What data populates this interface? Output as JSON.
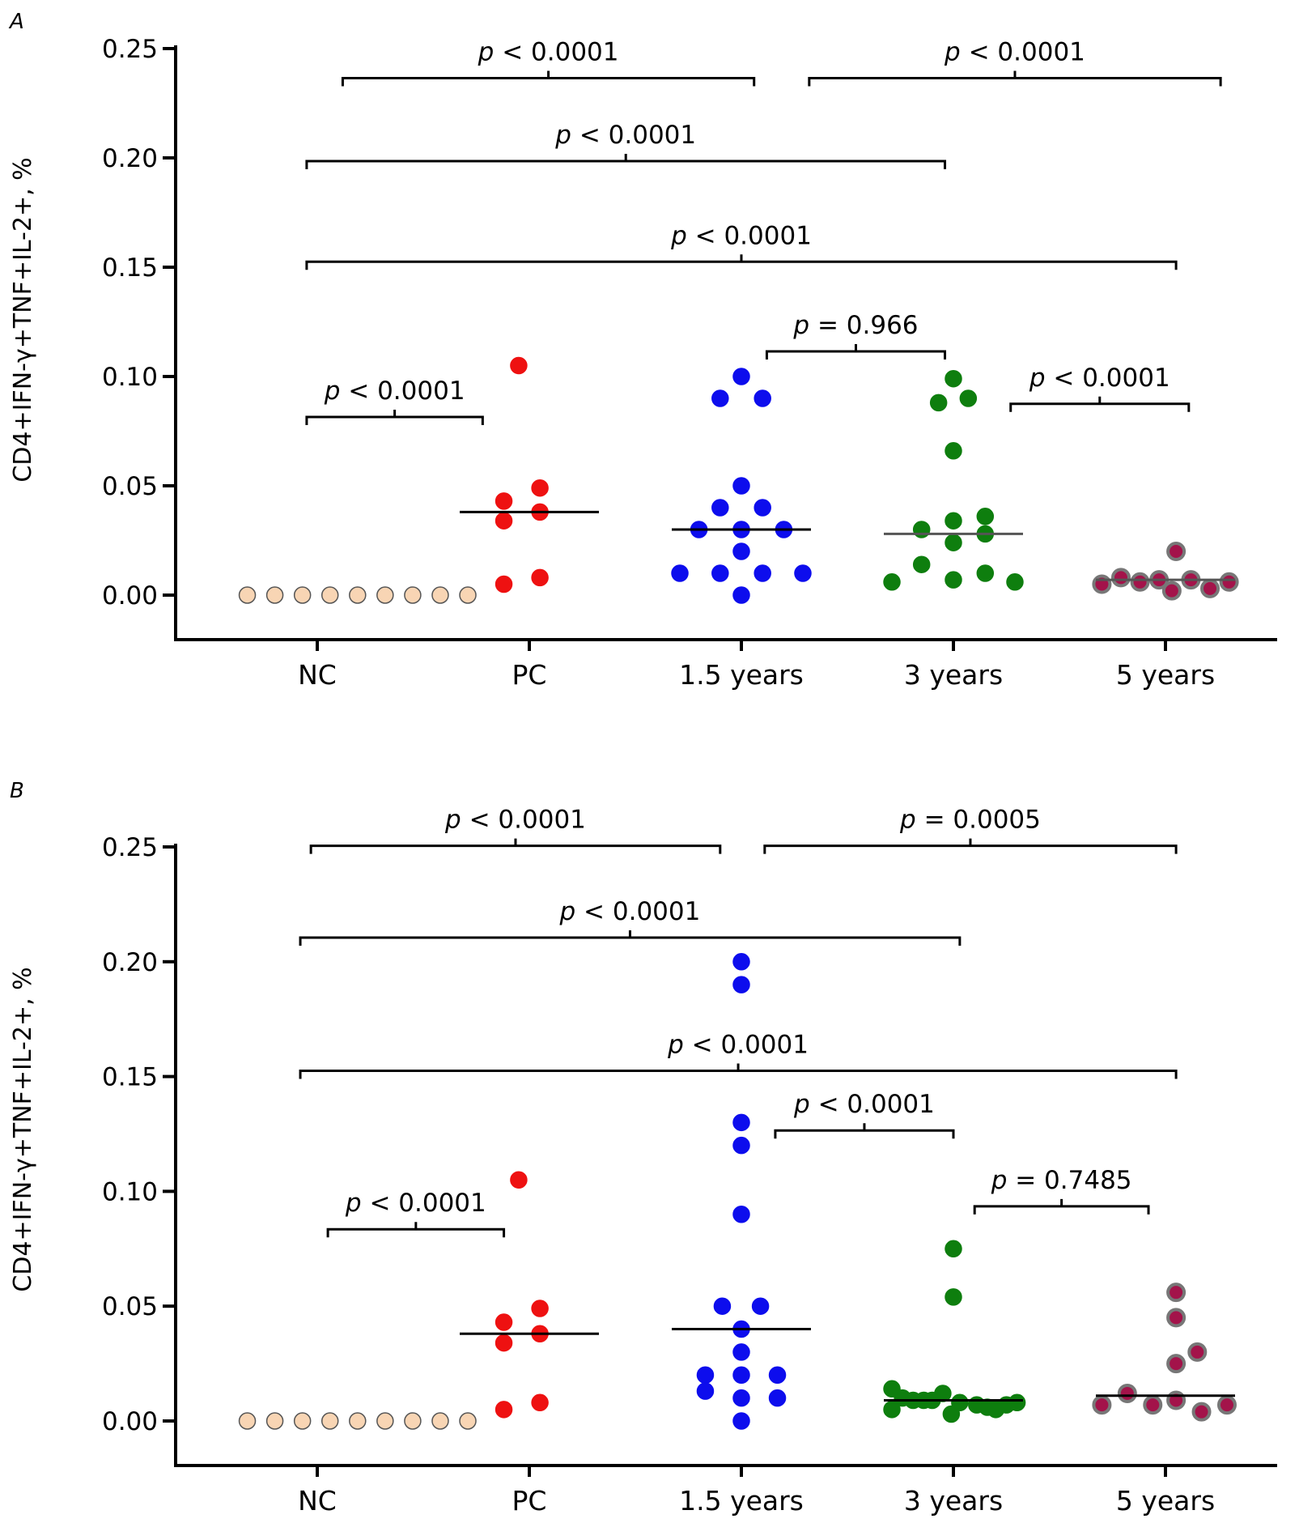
{
  "chart_data": [
    {
      "type": "scatter",
      "panel_label": "A",
      "ylabel": "CD4+IFN-γ+TNF+IL-2+, %",
      "xlabel": "",
      "ylim": [
        0,
        0.25
      ],
      "yticks": [
        "0.00",
        "0.05",
        "0.10",
        "0.15",
        "0.20",
        "0.25"
      ],
      "categories": [
        "NC",
        "PC",
        "1.5 years",
        "3 years",
        "5 years"
      ],
      "series": [
        {
          "category": "NC",
          "color": "#f8d5b4",
          "median": null,
          "points": [
            [
              -0.33,
              0
            ],
            [
              -0.2,
              0
            ],
            [
              -0.07,
              0
            ],
            [
              0.06,
              0
            ],
            [
              0.19,
              0
            ],
            [
              0.32,
              0
            ],
            [
              0.45,
              0
            ],
            [
              0.58,
              0
            ],
            [
              0.71,
              0
            ]
          ]
        },
        {
          "category": "PC",
          "color": "#ee1111",
          "median": 0.038,
          "points": [
            [
              -0.05,
              0.105
            ],
            [
              -0.12,
              0.043
            ],
            [
              0.05,
              0.049
            ],
            [
              -0.12,
              0.034
            ],
            [
              0.05,
              0.038
            ],
            [
              -0.12,
              0.005
            ],
            [
              0.05,
              0.008
            ]
          ]
        },
        {
          "category": "1.5 years",
          "color": "#0d0ded",
          "median": 0.03,
          "points": [
            [
              0,
              0.1
            ],
            [
              -0.1,
              0.09
            ],
            [
              0.1,
              0.09
            ],
            [
              0,
              0.05
            ],
            [
              -0.1,
              0.04
            ],
            [
              0.1,
              0.04
            ],
            [
              -0.2,
              0.03
            ],
            [
              0,
              0.03
            ],
            [
              0.2,
              0.03
            ],
            [
              0,
              0.02
            ],
            [
              -0.29,
              0.01
            ],
            [
              -0.1,
              0.01
            ],
            [
              0.1,
              0.01
            ],
            [
              0.29,
              0.01
            ],
            [
              0,
              0
            ]
          ]
        },
        {
          "category": "3 years",
          "color": "#0e7e0e",
          "median": 0.028,
          "points": [
            [
              0,
              0.099
            ],
            [
              -0.07,
              0.088
            ],
            [
              0.07,
              0.09
            ],
            [
              0,
              0.066
            ],
            [
              -0.15,
              0.03
            ],
            [
              0,
              0.034
            ],
            [
              0.15,
              0.036
            ],
            [
              0,
              0.024
            ],
            [
              0.15,
              0.028
            ],
            [
              -0.15,
              0.014
            ],
            [
              -0.29,
              0.006
            ],
            [
              0,
              0.007
            ],
            [
              0.15,
              0.01
            ],
            [
              0.29,
              0.006
            ]
          ]
        },
        {
          "category": "5 years",
          "color": "#a3134a",
          "median": 0.007,
          "points": [
            [
              -0.3,
              0.005
            ],
            [
              -0.21,
              0.008
            ],
            [
              -0.12,
              0.006
            ],
            [
              -0.03,
              0.007
            ],
            [
              0.05,
              0.02
            ],
            [
              0.03,
              0.002
            ],
            [
              0.12,
              0.007
            ],
            [
              0.21,
              0.003
            ],
            [
              0.3,
              0.006
            ]
          ]
        }
      ],
      "comparisons": [
        {
          "label": "p < 0.0001",
          "value": 0.0815,
          "from": -0.05,
          "to": 0.78
        },
        {
          "label": "p < 0.0001",
          "value": 0.2365,
          "from": 0.12,
          "to": 2.06
        },
        {
          "label": "p < 0.0001",
          "value": 0.2365,
          "from": 2.32,
          "to": 4.26
        },
        {
          "label": "p < 0.0001",
          "value": 0.1985,
          "from": -0.05,
          "to": 2.96
        },
        {
          "label": "p < 0.0001",
          "value": 0.1525,
          "from": -0.05,
          "to": 4.05
        },
        {
          "label": "p = 0.966",
          "value": 0.1115,
          "from": 2.12,
          "to": 2.96
        },
        {
          "label": "p < 0.0001",
          "value": 0.0875,
          "from": 3.27,
          "to": 4.11
        }
      ]
    },
    {
      "type": "scatter",
      "panel_label": "B",
      "ylabel": "CD4+IFN-γ+TNF+IL-2+, %",
      "xlabel": "",
      "ylim": [
        0,
        0.25
      ],
      "yticks": [
        "0.00",
        "0.05",
        "0.10",
        "0.15",
        "0.20",
        "0.25"
      ],
      "categories": [
        "NC",
        "PC",
        "1.5 years",
        "3 years",
        "5 years"
      ],
      "series": [
        {
          "category": "NC",
          "color": "#f8d5b4",
          "median": null,
          "points": [
            [
              -0.33,
              0
            ],
            [
              -0.2,
              0
            ],
            [
              -0.07,
              0
            ],
            [
              0.06,
              0
            ],
            [
              0.19,
              0
            ],
            [
              0.32,
              0
            ],
            [
              0.45,
              0
            ],
            [
              0.58,
              0
            ],
            [
              0.71,
              0
            ]
          ]
        },
        {
          "category": "PC",
          "color": "#ee1111",
          "median": 0.038,
          "points": [
            [
              -0.05,
              0.105
            ],
            [
              -0.12,
              0.043
            ],
            [
              0.05,
              0.049
            ],
            [
              -0.12,
              0.034
            ],
            [
              0.05,
              0.038
            ],
            [
              -0.12,
              0.005
            ],
            [
              0.05,
              0.008
            ]
          ]
        },
        {
          "category": "1.5 years",
          "color": "#0d0ded",
          "median": 0.04,
          "points": [
            [
              0,
              0.2
            ],
            [
              0,
              0.19
            ],
            [
              0,
              0.13
            ],
            [
              0,
              0.12
            ],
            [
              0,
              0.09
            ],
            [
              -0.09,
              0.05
            ],
            [
              0.09,
              0.05
            ],
            [
              0,
              0.04
            ],
            [
              0,
              0.03
            ],
            [
              -0.17,
              0.02
            ],
            [
              0,
              0.02
            ],
            [
              0.17,
              0.02
            ],
            [
              -0.17,
              0.013
            ],
            [
              0,
              0.01
            ],
            [
              0.17,
              0.01
            ],
            [
              0,
              0
            ]
          ]
        },
        {
          "category": "3 years",
          "color": "#0e7e0e",
          "median": 0.009,
          "points": [
            [
              0,
              0.075
            ],
            [
              0,
              0.054
            ],
            [
              -0.29,
              0.014
            ],
            [
              -0.24,
              0.01
            ],
            [
              -0.14,
              0.009
            ],
            [
              -0.05,
              0.012
            ],
            [
              -0.29,
              0.005
            ],
            [
              -0.19,
              0.009
            ],
            [
              -0.1,
              0.009
            ],
            [
              -0.01,
              0.003
            ],
            [
              0.03,
              0.008
            ],
            [
              0.11,
              0.007
            ],
            [
              0.16,
              0.006
            ],
            [
              0.2,
              0.005
            ],
            [
              0.25,
              0.007
            ],
            [
              0.3,
              0.008
            ]
          ]
        },
        {
          "category": "5 years",
          "color": "#a3134a",
          "median": 0.011,
          "points": [
            [
              0.05,
              0.056
            ],
            [
              0.05,
              0.045
            ],
            [
              0.05,
              0.025
            ],
            [
              0.15,
              0.03
            ],
            [
              -0.3,
              0.007
            ],
            [
              -0.18,
              0.012
            ],
            [
              -0.06,
              0.007
            ],
            [
              0.05,
              0.009
            ],
            [
              0.17,
              0.004
            ],
            [
              0.29,
              0.007
            ]
          ]
        }
      ],
      "comparisons": [
        {
          "label": "p < 0.0001",
          "value": 0.0835,
          "from": 0.05,
          "to": 0.88
        },
        {
          "label": "p < 0.0001",
          "value": 0.2505,
          "from": -0.03,
          "to": 1.9
        },
        {
          "label": "p = 0.0005",
          "value": 0.2505,
          "from": 2.11,
          "to": 4.05
        },
        {
          "label": "p < 0.0001",
          "value": 0.2105,
          "from": -0.08,
          "to": 3.03
        },
        {
          "label": "p < 0.0001",
          "value": 0.1525,
          "from": -0.08,
          "to": 4.05
        },
        {
          "label": "p < 0.0001",
          "value": 0.1265,
          "from": 2.16,
          "to": 3.0
        },
        {
          "label": "p = 0.7485",
          "value": 0.0935,
          "from": 3.1,
          "to": 3.92
        }
      ]
    }
  ]
}
